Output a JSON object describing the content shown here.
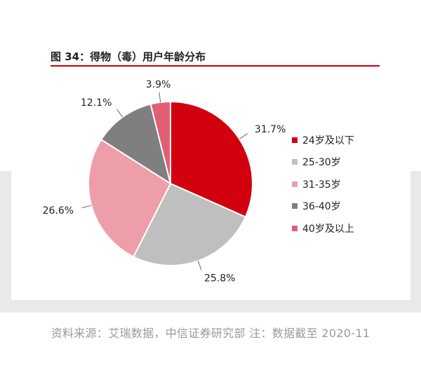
{
  "figure_title": "图 34：得物（毒）用户年龄分布",
  "source_note": "资料来源：艾瑞数据，中信证券研究部 注：数据截至 2020-11",
  "colors": {
    "accent": "#c7000b",
    "slices": [
      "#d2000f",
      "#bfbfbf",
      "#ee9ea8",
      "#7f7f7f",
      "#e05f76"
    ]
  },
  "chart_data": {
    "type": "pie",
    "title": "图 34：得物（毒）用户年龄分布",
    "legend_position": "right",
    "slices": [
      {
        "label": "24岁及以下",
        "value": 31.7,
        "display": "31.7%"
      },
      {
        "label": "25-30岁",
        "value": 25.8,
        "display": "25.8%"
      },
      {
        "label": "31-35岁",
        "value": 26.6,
        "display": "26.6%"
      },
      {
        "label": "36-40岁",
        "value": 12.1,
        "display": "12.1%"
      },
      {
        "label": "40岁及以上",
        "value": 3.9,
        "display": "3.9%"
      }
    ]
  }
}
